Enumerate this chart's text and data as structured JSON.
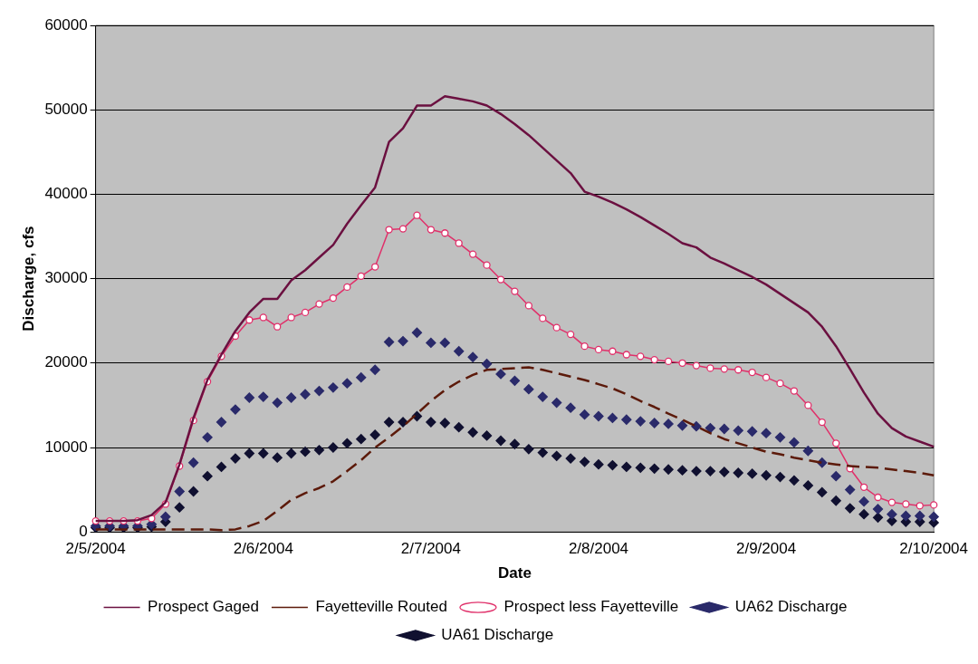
{
  "chart_data": {
    "type": "line",
    "xlabel": "Date",
    "ylabel": "Discharge, cfs",
    "ylim": [
      0,
      60000
    ],
    "yticks": [
      0,
      10000,
      20000,
      30000,
      40000,
      50000,
      60000
    ],
    "grid": "y",
    "legend": "bottom",
    "categories": [
      "2/5/2004",
      null,
      null,
      null,
      null,
      null,
      null,
      null,
      null,
      null,
      null,
      null,
      "2/6/2004",
      null,
      null,
      null,
      null,
      null,
      null,
      null,
      null,
      null,
      null,
      null,
      "2/7/2004",
      null,
      null,
      null,
      null,
      null,
      null,
      null,
      null,
      null,
      null,
      null,
      "2/8/2004",
      null,
      null,
      null,
      null,
      null,
      null,
      null,
      null,
      null,
      null,
      null,
      "2/9/2004",
      null,
      null,
      null,
      null,
      null,
      null,
      null,
      null,
      null,
      null,
      null,
      "2/10/2004"
    ],
    "series": [
      {
        "name": "Prospect Gaged",
        "color": "#6b1040",
        "marker": "none",
        "line_style": "solid",
        "values": [
          1300,
          1300,
          1300,
          1400,
          2000,
          3500,
          8000,
          13500,
          18000,
          21000,
          23800,
          26000,
          27600,
          27600,
          29800,
          31000,
          32500,
          34000,
          36500,
          38700,
          40800,
          46200,
          47800,
          50500,
          50500,
          51600,
          51300,
          51000,
          50500,
          49500,
          48300,
          47000,
          45500,
          44000,
          42500,
          40300,
          39700,
          39000,
          38200,
          37300,
          36300,
          35300,
          34200,
          33700,
          32500,
          31800,
          31000,
          30200,
          29300,
          28200,
          27100,
          26000,
          24300,
          22000,
          19300,
          16500,
          14000,
          12300,
          11300,
          10700,
          10100
        ]
      },
      {
        "name": "Fayetteville Routed",
        "color": "#5c1a0a",
        "marker": "none",
        "line_style": "dashed",
        "values": [
          300,
          300,
          300,
          300,
          300,
          300,
          300,
          300,
          300,
          200,
          300,
          700,
          1300,
          2500,
          3800,
          4600,
          5200,
          6000,
          7200,
          8500,
          10000,
          11200,
          12500,
          14000,
          15500,
          16800,
          17800,
          18600,
          19200,
          19300,
          19400,
          19500,
          19200,
          18800,
          18400,
          18000,
          17500,
          17000,
          16300,
          15500,
          14800,
          14000,
          13300,
          12500,
          11700,
          11000,
          10500,
          10000,
          9500,
          9200,
          8800,
          8500,
          8200,
          8000,
          7800,
          7700,
          7600,
          7400,
          7200,
          7000,
          6700
        ]
      },
      {
        "name": "Prospect less Fayetteville",
        "color": "#e0306a",
        "marker": "circle",
        "line_style": "solid",
        "values": [
          1300,
          1300,
          1300,
          1300,
          1600,
          3300,
          7800,
          13200,
          17800,
          20800,
          23200,
          25100,
          25400,
          24300,
          25400,
          26000,
          27000,
          27700,
          29000,
          30300,
          31400,
          35800,
          35900,
          37500,
          35800,
          35400,
          34200,
          32900,
          31600,
          29900,
          28500,
          26800,
          25300,
          24200,
          23400,
          22000,
          21600,
          21400,
          21000,
          20800,
          20400,
          20200,
          20000,
          19700,
          19400,
          19300,
          19200,
          18900,
          18300,
          17600,
          16700,
          15000,
          13000,
          10500,
          7500,
          5300,
          4100,
          3500,
          3300,
          3100,
          3200
        ]
      },
      {
        "name": "UA62 Discharge",
        "type": "scatter",
        "color": "#2a2a6a",
        "marker": "diamond",
        "values": [
          700,
          700,
          700,
          700,
          900,
          1800,
          4800,
          8200,
          11200,
          13000,
          14500,
          15900,
          16000,
          15300,
          15900,
          16300,
          16700,
          17100,
          17600,
          18300,
          19200,
          22500,
          22600,
          23600,
          22400,
          22400,
          21400,
          20700,
          19900,
          18700,
          17900,
          16900,
          16000,
          15300,
          14700,
          13900,
          13700,
          13500,
          13300,
          13100,
          12900,
          12800,
          12600,
          12500,
          12300,
          12200,
          12000,
          11900,
          11700,
          11200,
          10600,
          9600,
          8200,
          6600,
          5000,
          3600,
          2700,
          2100,
          1900,
          1900,
          1800
        ]
      },
      {
        "name": "UA61 Discharge",
        "type": "scatter",
        "color": "#101030",
        "marker": "diamond",
        "values": [
          500,
          500,
          500,
          500,
          600,
          1200,
          2900,
          4800,
          6600,
          7700,
          8700,
          9300,
          9300,
          8800,
          9300,
          9500,
          9700,
          10000,
          10500,
          11000,
          11500,
          13000,
          13000,
          13700,
          13000,
          12900,
          12400,
          11800,
          11400,
          10800,
          10400,
          9800,
          9400,
          9000,
          8700,
          8300,
          8000,
          7900,
          7700,
          7600,
          7500,
          7400,
          7300,
          7200,
          7200,
          7100,
          7000,
          6900,
          6700,
          6500,
          6100,
          5500,
          4700,
          3700,
          2800,
          2100,
          1700,
          1300,
          1200,
          1200,
          1100
        ]
      }
    ]
  }
}
